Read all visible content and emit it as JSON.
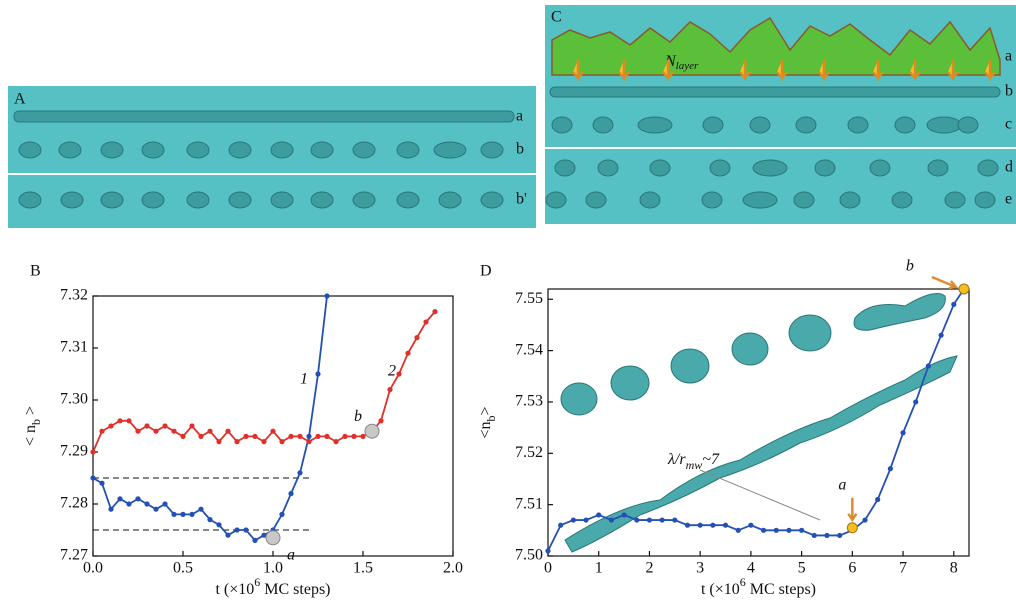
{
  "panels": {
    "A": {
      "label": "A",
      "rows": [
        "a",
        "b",
        "b'"
      ]
    },
    "C": {
      "label": "C",
      "rows": [
        "a",
        "b",
        "c",
        "d",
        "e"
      ],
      "n_layer": {
        "text": "N",
        "sub": "layer"
      }
    }
  },
  "chart_data": [
    {
      "type": "line",
      "panel": "B",
      "xlabel": {
        "text": "t (×10",
        "sup": "6",
        "end": " MC steps)"
      },
      "ylabel": {
        "text": "< n",
        "sub": "b",
        "end": " >"
      },
      "xlim": [
        0,
        2
      ],
      "ylim": [
        7.27,
        7.32
      ],
      "xticks": [
        {
          "value": 0,
          "label": "0.0"
        },
        0.5,
        {
          "value": 1,
          "label": "1.0"
        },
        1.5,
        {
          "value": 2,
          "label": "2.0"
        }
      ],
      "yticks": [
        7.27,
        7.28,
        7.29,
        {
          "value": 7.3,
          "label": "7.30"
        },
        7.31,
        7.32
      ],
      "x": [
        0,
        0.05,
        0.1,
        0.15,
        0.2,
        0.25,
        0.3,
        0.35,
        0.4,
        0.45,
        0.5,
        0.55,
        0.6,
        0.65,
        0.7,
        0.75,
        0.8,
        0.85,
        0.9,
        0.95,
        1,
        1.05,
        1.1,
        1.15,
        1.2,
        1.25,
        1.3,
        1.35,
        1.4,
        1.45,
        1.5,
        1.55,
        1.6,
        1.65,
        1.7,
        1.75,
        1.8,
        1.85,
        1.9
      ],
      "series": [
        {
          "name": "1",
          "color": "#2350b4",
          "values": [
            7.285,
            7.284,
            7.279,
            7.281,
            7.28,
            7.281,
            7.28,
            7.279,
            7.28,
            7.278,
            7.278,
            7.278,
            7.279,
            7.277,
            7.276,
            7.274,
            7.275,
            7.275,
            7.273,
            7.274,
            7.275,
            7.278,
            7.282,
            7.286,
            7.293,
            7.305,
            7.32,
            null,
            null,
            null,
            null,
            null,
            null,
            null,
            null,
            null,
            null,
            null,
            null
          ]
        },
        {
          "name": "2",
          "color": "#e0302a",
          "values": [
            7.29,
            7.294,
            7.295,
            7.296,
            7.296,
            7.294,
            7.295,
            7.294,
            7.295,
            7.294,
            7.293,
            7.295,
            7.293,
            7.294,
            7.292,
            7.294,
            7.292,
            7.293,
            7.293,
            7.292,
            7.294,
            7.292,
            7.293,
            7.293,
            7.292,
            7.293,
            7.293,
            7.292,
            7.293,
            7.293,
            7.293,
            7.294,
            7.296,
            7.302,
            7.305,
            7.309,
            7.312,
            7.315,
            7.317
          ]
        }
      ],
      "hlines": [
        7.285,
        7.275
      ],
      "annotations": [
        {
          "text": "a",
          "x": 1,
          "y": 7.2735
        },
        {
          "text": "b",
          "x": 1.55,
          "y": 7.294
        }
      ]
    },
    {
      "type": "line",
      "panel": "D",
      "xlabel": {
        "text": "t (×10",
        "sup": "6",
        "end": " MC steps)"
      },
      "ylabel": {
        "text": "<n",
        "sub": "b",
        "end": ">"
      },
      "xlim": [
        0,
        8.3
      ],
      "ylim": [
        7.5,
        7.552
      ],
      "xticks": [
        0,
        1,
        2,
        3,
        4,
        5,
        6,
        7,
        8
      ],
      "yticks": [
        {
          "value": 7.5,
          "label": "7.50"
        },
        7.51,
        7.52,
        7.53,
        7.54,
        7.55
      ],
      "x": [
        0,
        0.25,
        0.5,
        0.75,
        1,
        1.25,
        1.5,
        1.75,
        2,
        2.25,
        2.5,
        2.75,
        3,
        3.25,
        3.5,
        3.75,
        4,
        4.25,
        4.5,
        4.75,
        5,
        5.25,
        5.5,
        5.75,
        6,
        6.25,
        6.5,
        6.75,
        7,
        7.25,
        7.5,
        7.75,
        8,
        8.2
      ],
      "series": [
        {
          "color": "#2350b4",
          "values": [
            7.501,
            7.506,
            7.507,
            7.507,
            7.508,
            7.507,
            7.508,
            7.507,
            7.507,
            7.507,
            7.507,
            7.506,
            7.506,
            7.506,
            7.506,
            7.505,
            7.506,
            7.505,
            7.505,
            7.505,
            7.505,
            7.504,
            7.504,
            7.504,
            7.505,
            7.507,
            7.511,
            7.517,
            7.524,
            7.53,
            7.537,
            7.543,
            7.549,
            7.552
          ]
        }
      ],
      "note": {
        "text": "λ/r",
        "sub": "mw",
        "end": "~7"
      },
      "annotations": [
        {
          "text": "a",
          "x": 6,
          "y": 7.5055
        },
        {
          "text": "b",
          "x": 8.2,
          "y": 7.552
        }
      ]
    }
  ]
}
